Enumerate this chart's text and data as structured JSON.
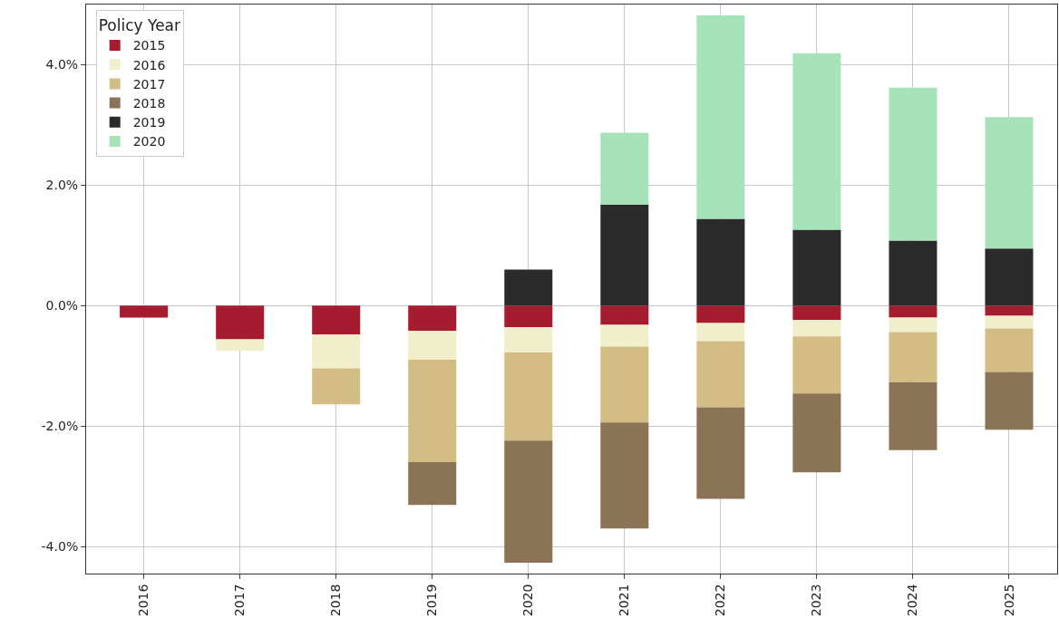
{
  "chart_data": {
    "type": "bar",
    "stacked": true,
    "legend_title": "Policy Year",
    "legend": "top left",
    "grid": true,
    "categories": [
      "2016",
      "2017",
      "2018",
      "2019",
      "2020",
      "2021",
      "2022",
      "2023",
      "2024",
      "2025"
    ],
    "ylim": [
      -4.45,
      5.0
    ],
    "yticks": [
      {
        "value": -4,
        "label": "-4.0%"
      },
      {
        "value": -2,
        "label": "-2.0%"
      },
      {
        "value": 0,
        "label": "0.0%"
      },
      {
        "value": 2,
        "label": "2.0%"
      },
      {
        "value": 4,
        "label": "4.0%"
      }
    ],
    "series": [
      {
        "name": "2015",
        "color": "#a51c30",
        "values": [
          -0.2,
          -0.56,
          -0.48,
          -0.42,
          -0.36,
          -0.32,
          -0.29,
          -0.24,
          -0.2,
          -0.17
        ]
      },
      {
        "name": "2016",
        "color": "#f0eecb",
        "values": [
          null,
          -0.19,
          -0.56,
          -0.48,
          -0.42,
          -0.36,
          -0.3,
          -0.27,
          -0.24,
          -0.21
        ]
      },
      {
        "name": "2017",
        "color": "#d4bd84",
        "values": [
          null,
          null,
          -0.6,
          -1.7,
          -1.46,
          -1.26,
          -1.1,
          -0.95,
          -0.83,
          -0.72
        ]
      },
      {
        "name": "2018",
        "color": "#8b7355",
        "values": [
          null,
          null,
          null,
          -0.71,
          -2.03,
          -1.76,
          -1.52,
          -1.31,
          -1.13,
          -0.96
        ]
      },
      {
        "name": "2019",
        "color": "#2b2b2b",
        "values": [
          null,
          null,
          null,
          null,
          0.6,
          1.68,
          1.44,
          1.26,
          1.08,
          0.95
        ]
      },
      {
        "name": "2020",
        "color": "#a7e3b8",
        "values": [
          null,
          null,
          null,
          null,
          null,
          1.19,
          3.38,
          2.93,
          2.54,
          2.18
        ]
      }
    ]
  }
}
